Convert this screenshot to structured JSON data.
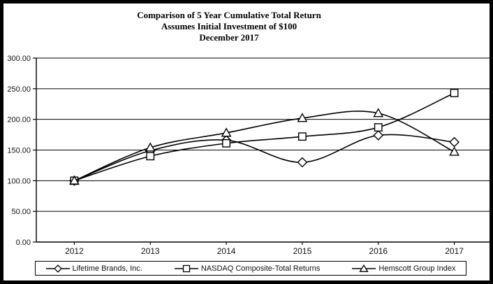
{
  "title": {
    "line1": "Comparison of 5 Year Cumulative Total Return",
    "line2": "Assumes Initial Investment of $100",
    "line3": "December 2017"
  },
  "chart_data": {
    "type": "line",
    "title": "Comparison of 5 Year Cumulative Total Return",
    "subtitle1": "Assumes Initial Investment of $100",
    "subtitle2": "December 2017",
    "categories": [
      "2012",
      "2013",
      "2014",
      "2015",
      "2016",
      "2017"
    ],
    "series": [
      {
        "name": "Lifetime Brands, Inc.",
        "marker": "diamond",
        "values": [
          100.0,
          149.0,
          166.0,
          130.0,
          174.0,
          163.0
        ]
      },
      {
        "name": "NASDAQ Composite-Total Returns",
        "marker": "square",
        "values": [
          100.0,
          140.0,
          161.0,
          172.0,
          187.0,
          243.0
        ]
      },
      {
        "name": "Hemscott Group Index",
        "marker": "triangle",
        "values": [
          100.0,
          154.0,
          178.0,
          202.0,
          210.0,
          147.0
        ]
      }
    ],
    "xlabel": "",
    "ylabel": "",
    "ylim": [
      0,
      300
    ],
    "ytick_values": [
      0,
      50,
      100,
      150,
      200,
      250,
      300
    ],
    "ytick_labels": [
      "0.00",
      "50.00",
      "100.00",
      "150.00",
      "200.00",
      "250.00",
      "300.00"
    ],
    "grid": true,
    "smoothed": true,
    "legend_position": "bottom",
    "line_color": "#000000",
    "marker_fill": "#ffffff",
    "background_color": "#ffffff",
    "frame_color": "#000000"
  }
}
